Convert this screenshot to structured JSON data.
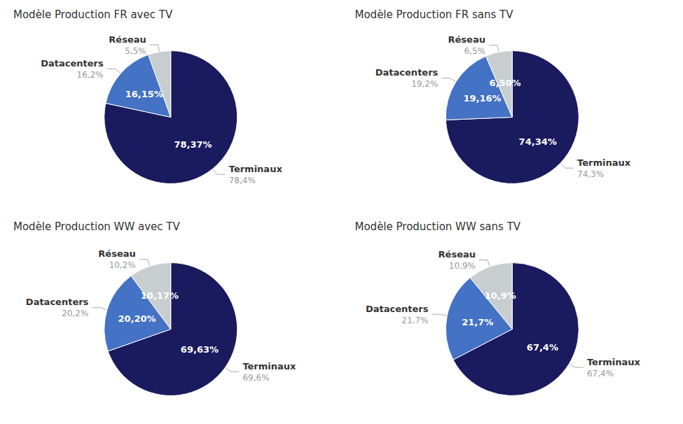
{
  "chart_data": [
    {
      "type": "pie",
      "title": "Modèle Production FR avec TV",
      "categories": [
        "Terminaux",
        "Datacenters",
        "Réseau"
      ],
      "values": [
        78.37,
        16.15,
        5.48
      ],
      "colors": [
        "#1a1a5e",
        "#4472c4",
        "#c8cdd0"
      ],
      "data_labels": true,
      "value_labels": [
        "78,37%",
        "16,15%",
        null
      ],
      "annotations": [
        "78,4%",
        "16,2%",
        "5,5%"
      ]
    },
    {
      "type": "pie",
      "title": "Modèle Production FR sans TV",
      "categories": [
        "Terminaux",
        "Datacenters",
        "Réseau"
      ],
      "values": [
        74.34,
        19.16,
        6.5
      ],
      "colors": [
        "#1a1a5e",
        "#4472c4",
        "#c8cdd0"
      ],
      "data_labels": true,
      "value_labels": [
        "74,34%",
        "19,16%",
        "6,50%"
      ],
      "annotations": [
        "74,3%",
        "19,2%",
        "6,5%"
      ]
    },
    {
      "type": "pie",
      "title": "Modèle Production WW avec TV",
      "categories": [
        "Terminaux",
        "Datacenters",
        "Réseau"
      ],
      "values": [
        69.63,
        20.2,
        10.17
      ],
      "colors": [
        "#1a1a5e",
        "#4472c4",
        "#c8cdd0"
      ],
      "data_labels": true,
      "value_labels": [
        "69,63%",
        "20,20%",
        "10,17%"
      ],
      "annotations": [
        "69,6%",
        "20,2%",
        "10,2%"
      ]
    },
    {
      "type": "pie",
      "title": "Modèle Production WW sans TV",
      "categories": [
        "Terminaux",
        "Datacenters",
        "Réseau"
      ],
      "values": [
        67.4,
        21.7,
        10.9
      ],
      "colors": [
        "#1a1a5e",
        "#4472c4",
        "#c8cdd0"
      ],
      "data_labels": true,
      "value_labels": [
        "67,4%",
        "21,7%",
        "10,9%"
      ],
      "annotations": [
        "67,4%",
        "21,7%",
        "10,9%"
      ]
    }
  ]
}
